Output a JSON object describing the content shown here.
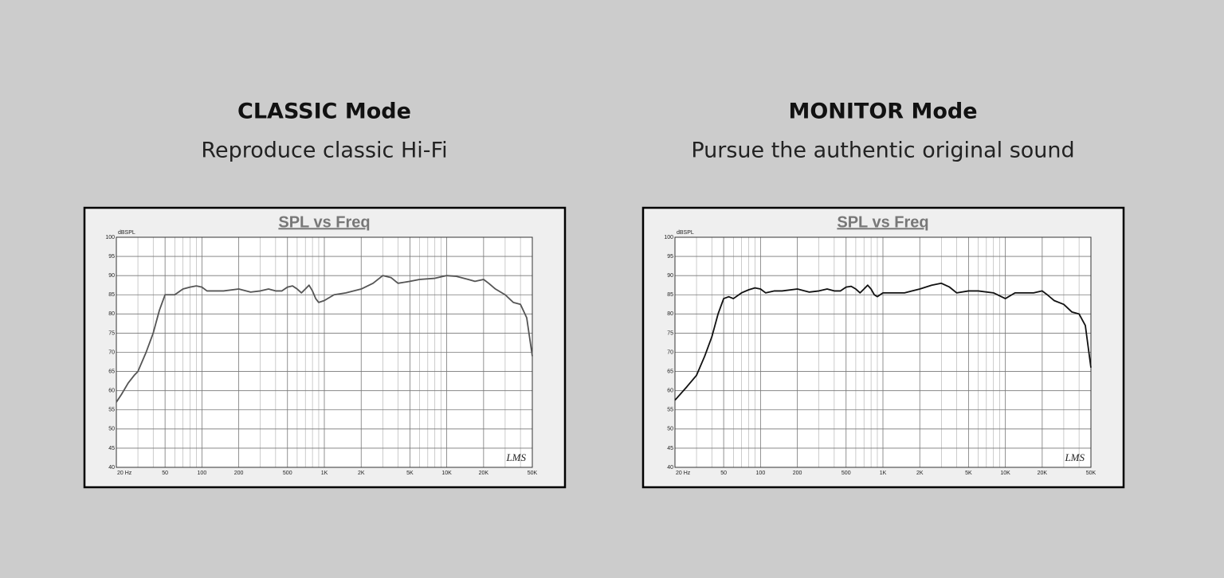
{
  "chart_data": [
    {
      "type": "line",
      "heading": "CLASSIC Mode",
      "subtitle": "Reproduce classic Hi-Fi",
      "title": "SPL vs Freq",
      "ylabel": "dBSPL",
      "annotation": "LMS",
      "xscale": "log",
      "grid": true,
      "color": "#555555",
      "xlim": [
        20,
        50000
      ],
      "ylim": [
        40,
        100
      ],
      "xticks": [
        {
          "value": 20,
          "label": "20 Hz"
        },
        50,
        100,
        200,
        500,
        {
          "value": 1000,
          "label": "1K"
        },
        {
          "value": 2000,
          "label": "2K"
        },
        {
          "value": 5000,
          "label": "5K"
        },
        {
          "value": 10000,
          "label": "10K"
        },
        {
          "value": 20000,
          "label": "20K"
        },
        {
          "value": 50000,
          "label": "50K"
        }
      ],
      "xminorticks": [
        30,
        40,
        60,
        70,
        80,
        90,
        300,
        400,
        600,
        700,
        800,
        900,
        3000,
        4000,
        6000,
        7000,
        8000,
        9000,
        30000,
        40000
      ],
      "yticks": [
        40,
        45,
        50,
        55,
        60,
        65,
        70,
        75,
        80,
        85,
        90,
        95,
        100
      ],
      "x": [
        20,
        22,
        25,
        28,
        30,
        35,
        40,
        45,
        50,
        55,
        60,
        70,
        80,
        90,
        100,
        110,
        130,
        150,
        200,
        250,
        300,
        350,
        400,
        450,
        500,
        550,
        600,
        650,
        700,
        750,
        800,
        850,
        900,
        1000,
        1200,
        1500,
        2000,
        2500,
        3000,
        3500,
        4000,
        5000,
        6000,
        8000,
        10000,
        12000,
        15000,
        17000,
        20000,
        22000,
        25000,
        30000,
        35000,
        40000,
        45000,
        50000
      ],
      "values": [
        57,
        59,
        62,
        64,
        65,
        70,
        75,
        81,
        85,
        85,
        85,
        86.5,
        87,
        87.3,
        87,
        86,
        86,
        86,
        86.5,
        85.7,
        86,
        86.5,
        86,
        86,
        87,
        87.3,
        86.5,
        85.5,
        86.5,
        87.5,
        86,
        84,
        83,
        83.5,
        85,
        85.5,
        86.5,
        88,
        90,
        89.5,
        88,
        88.5,
        89,
        89.3,
        90,
        89.8,
        89,
        88.5,
        89,
        88,
        86.5,
        85,
        83,
        82.5,
        79,
        69
      ]
    },
    {
      "type": "line",
      "heading": "MONITOR Mode",
      "subtitle": "Pursue the authentic original sound",
      "title": "SPL vs Freq",
      "ylabel": "dBSPL",
      "annotation": "LMS",
      "xscale": "log",
      "grid": true,
      "color": "#111111",
      "xlim": [
        20,
        50000
      ],
      "ylim": [
        40,
        100
      ],
      "xticks": [
        {
          "value": 20,
          "label": "20 Hz"
        },
        50,
        100,
        200,
        500,
        {
          "value": 1000,
          "label": "1K"
        },
        {
          "value": 2000,
          "label": "2K"
        },
        {
          "value": 5000,
          "label": "5K"
        },
        {
          "value": 10000,
          "label": "10K"
        },
        {
          "value": 20000,
          "label": "20K"
        },
        {
          "value": 50000,
          "label": "50K"
        }
      ],
      "xminorticks": [
        30,
        40,
        60,
        70,
        80,
        90,
        300,
        400,
        600,
        700,
        800,
        900,
        3000,
        4000,
        6000,
        7000,
        8000,
        9000,
        30000,
        40000
      ],
      "yticks": [
        40,
        45,
        50,
        55,
        60,
        65,
        70,
        75,
        80,
        85,
        90,
        95,
        100
      ],
      "x": [
        20,
        25,
        30,
        35,
        40,
        45,
        50,
        55,
        60,
        70,
        80,
        90,
        100,
        110,
        130,
        150,
        200,
        250,
        300,
        350,
        400,
        450,
        500,
        550,
        600,
        650,
        700,
        750,
        800,
        850,
        900,
        1000,
        1200,
        1500,
        2000,
        2500,
        3000,
        3500,
        4000,
        5000,
        6000,
        8000,
        10000,
        12000,
        15000,
        17000,
        20000,
        22000,
        25000,
        30000,
        35000,
        40000,
        45000,
        50000
      ],
      "values": [
        57.5,
        61,
        64,
        69,
        74,
        80,
        84,
        84.5,
        84,
        85.5,
        86.3,
        86.8,
        86.5,
        85.5,
        86,
        86,
        86.5,
        85.7,
        86,
        86.5,
        86,
        86,
        87,
        87.2,
        86.5,
        85.5,
        86.5,
        87.5,
        86.5,
        85,
        84.5,
        85.5,
        85.5,
        85.5,
        86.5,
        87.5,
        88,
        87,
        85.5,
        86,
        86,
        85.5,
        84,
        85.5,
        85.5,
        85.5,
        86,
        85,
        83.5,
        82.5,
        80.5,
        80,
        77,
        66
      ]
    }
  ]
}
